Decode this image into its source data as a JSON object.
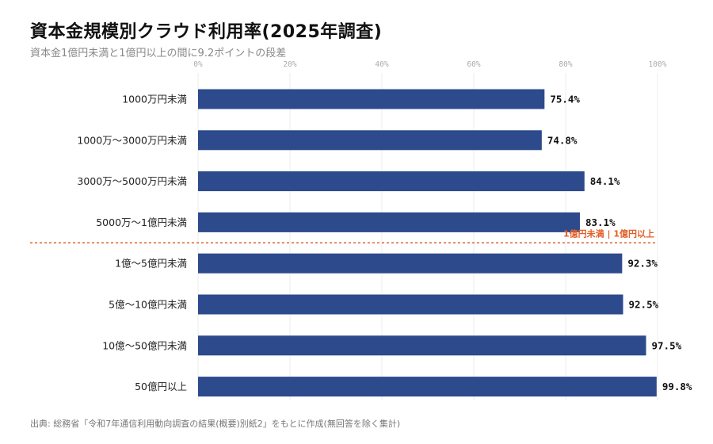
{
  "title": "資本金規模別クラウド利用率(2025年調査)",
  "subtitle": "資本金1億円未満と1億円以上の間に9.2ポイントの段差",
  "source": "出典: 総務省「令和7年通信利用動向調査の結果(概要)別紙2」をもとに作成(無回答を除く集計)",
  "colors": {
    "bar": "#2c4a8c",
    "divider": "#e0602a",
    "grid": "#eeeeee"
  },
  "chart_data": {
    "type": "bar",
    "orientation": "horizontal",
    "categories": [
      "1000万円未満",
      "1000万〜3000万円未満",
      "3000万〜5000万円未満",
      "5000万〜1億円未満",
      "1億〜5億円未満",
      "5億〜10億円未満",
      "10億〜50億円未満",
      "50億円以上"
    ],
    "values": [
      75.4,
      74.8,
      84.1,
      83.1,
      92.3,
      92.5,
      97.5,
      99.8
    ],
    "value_labels": [
      "75.4%",
      "74.8%",
      "84.1%",
      "83.1%",
      "92.3%",
      "92.5%",
      "97.5%",
      "99.8%"
    ],
    "xlim": [
      0,
      100
    ],
    "ticks": [
      0,
      20,
      40,
      60,
      80,
      100
    ],
    "tick_labels": [
      "0%",
      "20%",
      "40%",
      "60%",
      "80%",
      "100%"
    ],
    "grid": true,
    "divider_after_index": 3,
    "divider_label": "1億円未満 | 1億円以上"
  }
}
